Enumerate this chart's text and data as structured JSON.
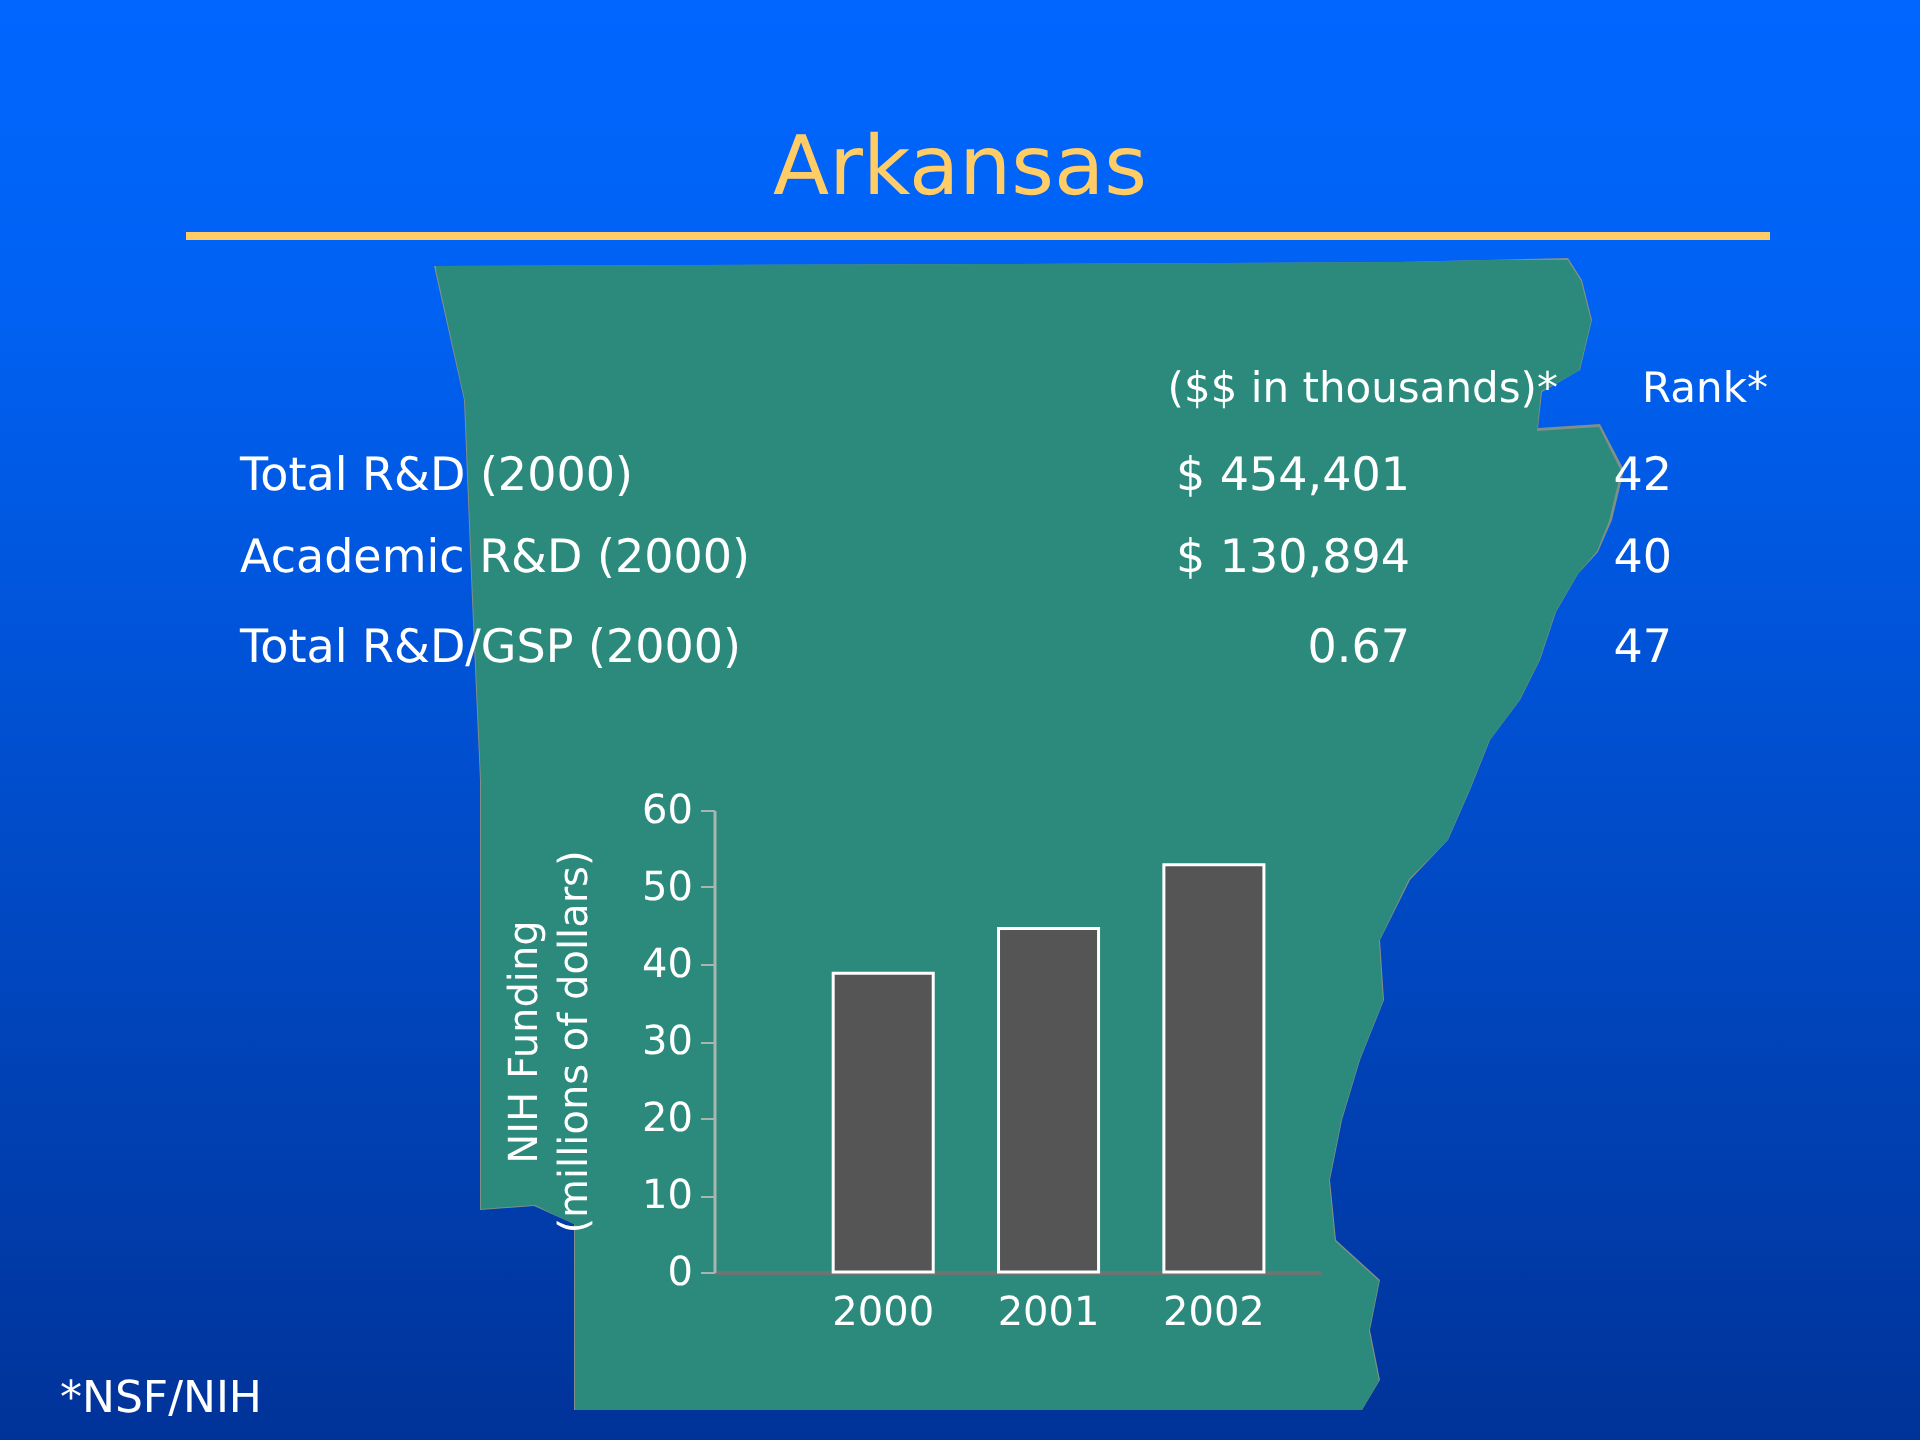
{
  "chart_data": {
    "type": "bar",
    "title": "Arkansas",
    "categories": [
      "2000",
      "2001",
      "2002"
    ],
    "values": [
      38.8,
      44.6,
      52.9
    ],
    "color": "#555555",
    "ylabel": "NIH Funding\n(millions of dollars)",
    "ylim": [
      0,
      60
    ],
    "yticks": [
      0,
      10,
      20,
      30,
      40,
      50,
      60
    ],
    "annotations": [
      "($$ in thousands)*",
      "Rank*",
      "Total R&D (2000)",
      "$ 454,401",
      "42",
      "Academic R&D (2000)",
      "$ 130,894",
      "40",
      "Total R&D/GSP (2000)",
      "0.67",
      "47",
      "*NSF/NIH"
    ]
  }
}
